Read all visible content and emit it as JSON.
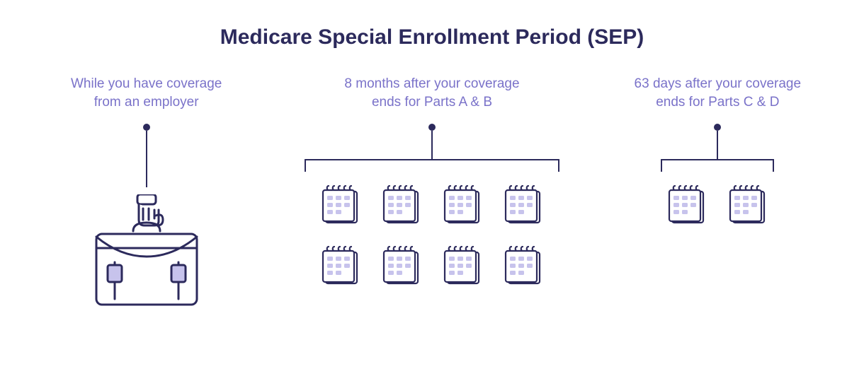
{
  "title": {
    "text": "Medicare Special Enrollment Period (SEP)",
    "color": "#2c2a5c",
    "fontsize": 30
  },
  "captions": {
    "color": "#7a72c9",
    "fontsize": 19,
    "col1_line1": "While you have coverage",
    "col1_line2": "from an employer",
    "col2_line1": "8 months after your coverage",
    "col2_line2": "ends for Parts A & B",
    "col3_line1": "63 days after your coverage",
    "col3_line2": "ends for Parts C & D"
  },
  "connector": {
    "pin_color": "#2c2a5c",
    "line_color": "#2c2a5c",
    "stem_height_col1": 80,
    "stem_height_col2": 40,
    "stem_height_col3": 40,
    "bracket_width_col2": 360,
    "bracket_width_col3": 160
  },
  "icons": {
    "stroke": "#2c2a5c",
    "fill_light": "#c7c3ec",
    "calendar_count_col2": 8,
    "calendar_count_col3": 2
  },
  "background": "#ffffff"
}
